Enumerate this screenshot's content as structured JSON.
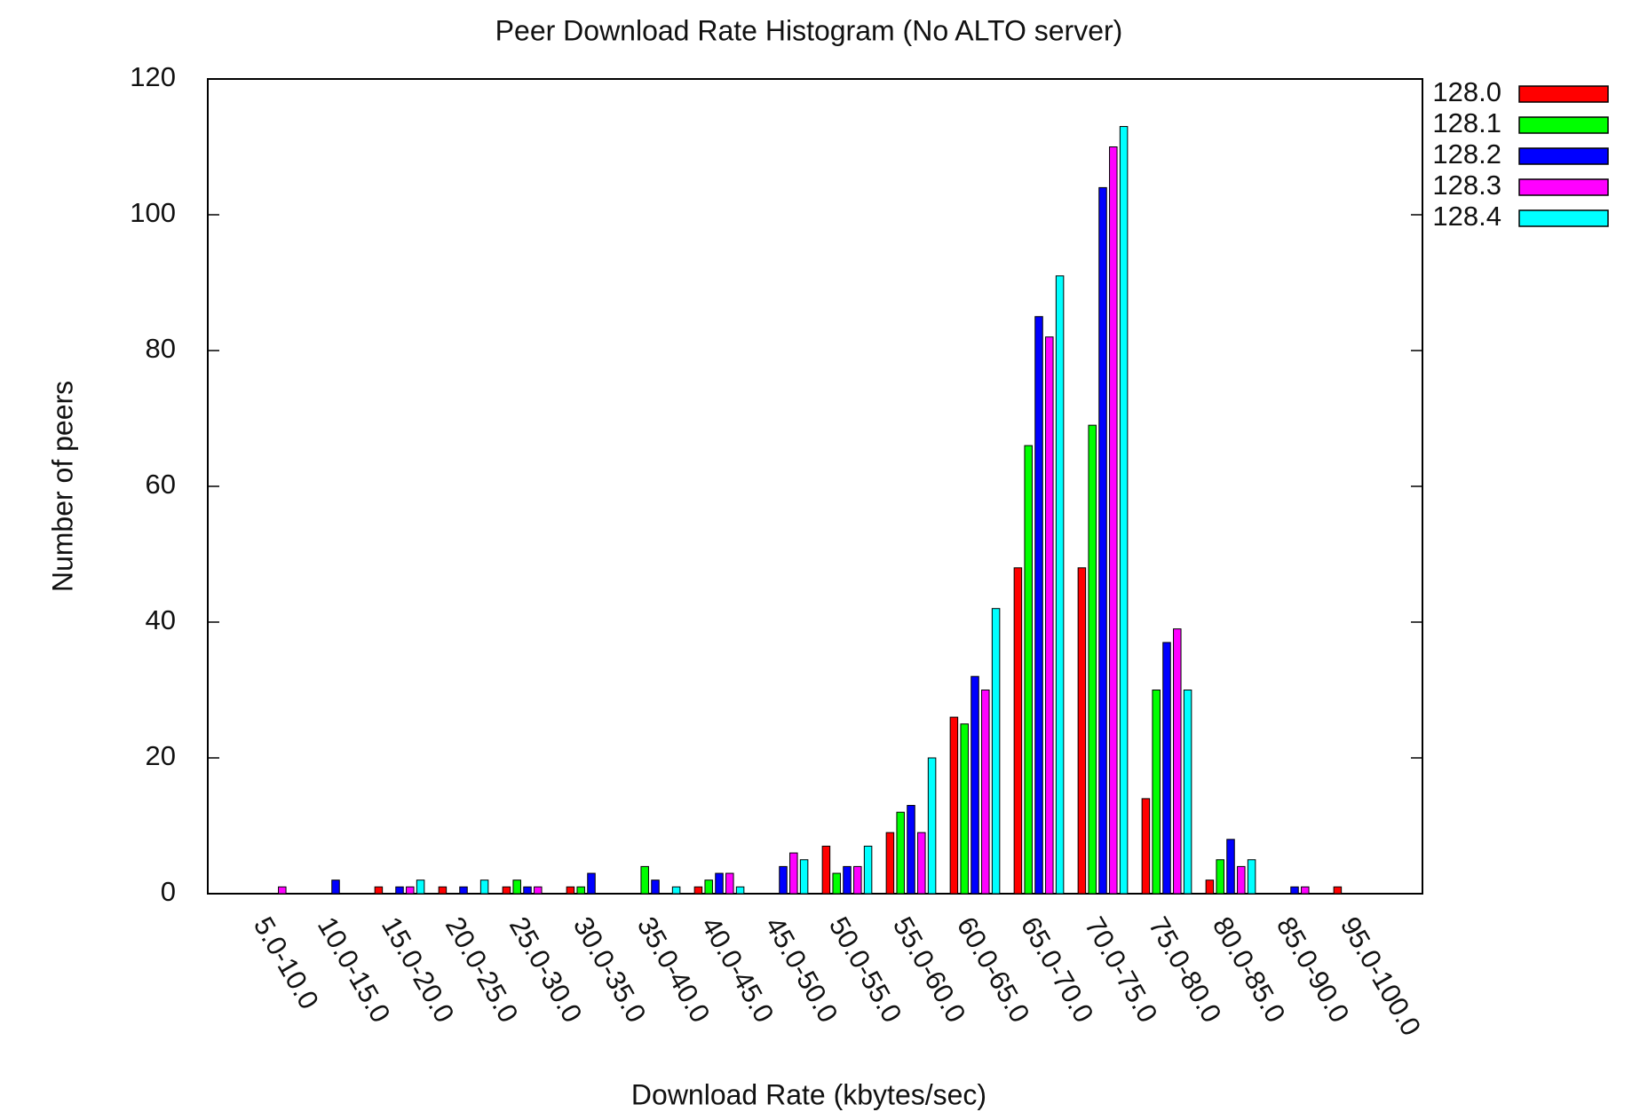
{
  "chart_data": {
    "type": "bar",
    "title": "Peer Download Rate Histogram (No ALTO server)",
    "x_label": "Download Rate (kbytes/sec)",
    "y_label": "Number of peers",
    "categories": [
      "5.0-10.0",
      "10.0-15.0",
      "15.0-20.0",
      "20.0-25.0",
      "25.0-30.0",
      "30.0-35.0",
      "35.0-40.0",
      "40.0-45.0",
      "45.0-50.0",
      "50.0-55.0",
      "55.0-60.0",
      "60.0-65.0",
      "65.0-70.0",
      "70.0-75.0",
      "75.0-80.0",
      "80.0-85.0",
      "85.0-90.0",
      "95.0-100.0"
    ],
    "series": [
      {
        "name": "128.0",
        "color": "#ff0000",
        "values": [
          0,
          0,
          1,
          1,
          1,
          1,
          0,
          1,
          0,
          7,
          9,
          26,
          48,
          48,
          14,
          2,
          0,
          1
        ]
      },
      {
        "name": "128.1",
        "color": "#00ff00",
        "values": [
          0,
          0,
          0,
          0,
          2,
          1,
          4,
          2,
          0,
          3,
          12,
          25,
          66,
          69,
          30,
          5,
          0,
          0
        ]
      },
      {
        "name": "128.2",
        "color": "#0000ff",
        "values": [
          0,
          2,
          1,
          1,
          1,
          3,
          2,
          3,
          4,
          4,
          13,
          32,
          85,
          104,
          37,
          8,
          1,
          0
        ]
      },
      {
        "name": "128.3",
        "color": "#ff00ff",
        "values": [
          1,
          0,
          1,
          0,
          1,
          0,
          0,
          3,
          6,
          4,
          9,
          30,
          82,
          110,
          39,
          4,
          1,
          0
        ]
      },
      {
        "name": "128.4",
        "color": "#00ffff",
        "values": [
          0,
          0,
          2,
          2,
          0,
          0,
          1,
          1,
          5,
          7,
          20,
          42,
          91,
          113,
          30,
          5,
          0,
          0
        ]
      }
    ],
    "ylim": [
      0,
      120
    ],
    "yticks": [
      0,
      20,
      40,
      60,
      80,
      100,
      120
    ],
    "legend": "right"
  }
}
